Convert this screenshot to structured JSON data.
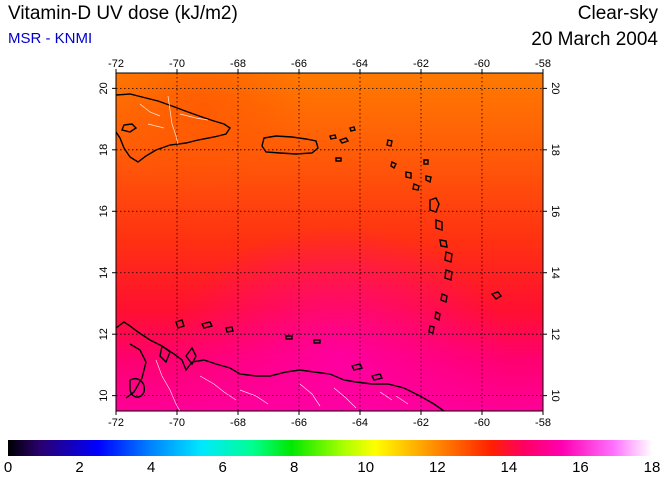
{
  "header": {
    "title": "Vitamin-D UV dose (kJ/m2)",
    "subtitle": "MSR - KNMI",
    "condition": "Clear-sky",
    "date": "20 March 2004"
  },
  "map": {
    "lon_range": [
      -72,
      -58
    ],
    "lat_range": [
      9.5,
      20.5
    ],
    "lon_ticks": [
      "-72",
      "-70",
      "-68",
      "-66",
      "-64",
      "-62",
      "-60",
      "-58"
    ],
    "lat_ticks": [
      "10",
      "12",
      "14",
      "16",
      "18",
      "20"
    ],
    "grid": "dotted",
    "colors": {
      "field_north": "#ff7800",
      "field_mid": "#ff3010",
      "field_south": "#ff0088",
      "coastline": "#000000",
      "borders": "#ffffff"
    }
  },
  "colorbar": {
    "ticks": [
      "0",
      "2",
      "4",
      "6",
      "8",
      "10",
      "12",
      "14",
      "16",
      "18"
    ],
    "range": [
      0,
      18
    ]
  }
}
